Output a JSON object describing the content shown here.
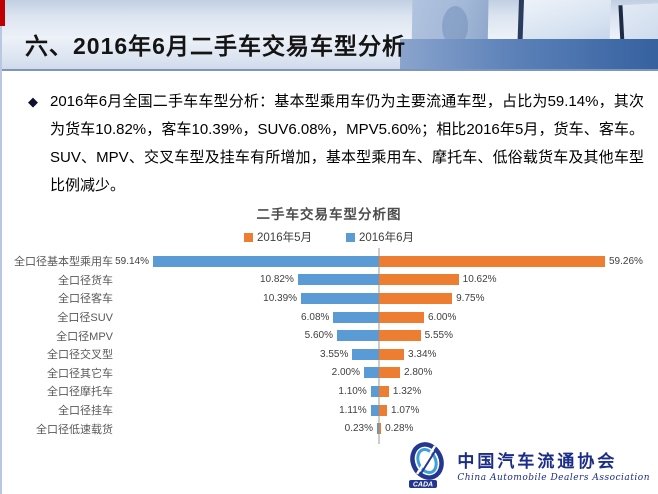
{
  "header": {
    "title": "六、2016年6月二手车交易车型分析"
  },
  "body": {
    "bullet": "◆",
    "paragraph": "2016年6月全国二手车车型分析：基本型乘用车仍为主要流通车型，占比为59.14%，其次为货车10.82%，客车10.39%，SUV6.08%，MPV5.60%；相比2016年5月，货车、客车。SUV、MPV、交叉车型及挂车有所增加，基本型乘用车、摩托车、低俗载货车及其他车型比例减少。"
  },
  "chart_data": {
    "type": "bar",
    "variant": "diverging-horizontal-tornado",
    "title": "二手车交易车型分析图",
    "legend_position": "top-center",
    "grid": false,
    "xlim_note": "bars clipped at about 30% per side; 59% bars truncated at plot edges",
    "categories": [
      "全口径基本型乘用车",
      "全口径货车",
      "全口径客车",
      "全口径SUV",
      "全口径MPV",
      "全口径交叉型",
      "全口径其它车",
      "全口径摩托车",
      "全口径挂车",
      "全口径低速载货"
    ],
    "series": [
      {
        "name": "2016年5月",
        "color": "#ED7D31",
        "side": "right",
        "values": [
          59.26,
          10.62,
          9.75,
          6.0,
          5.55,
          3.34,
          2.8,
          1.32,
          1.07,
          0.28
        ],
        "labels": [
          "59.26%",
          "10.62%",
          "9.75%",
          "6.00%",
          "5.55%",
          "3.34%",
          "2.80%",
          "1.32%",
          "1.07%",
          "0.28%"
        ]
      },
      {
        "name": "2016年6月",
        "color": "#5B9BD5",
        "side": "left",
        "values": [
          59.14,
          10.82,
          10.39,
          6.08,
          5.6,
          3.55,
          2.0,
          1.1,
          1.11,
          0.23
        ],
        "labels": [
          "59.14%",
          "10.82%",
          "10.39%",
          "6.08%",
          "5.60%",
          "3.55%",
          "2.00%",
          "1.10%",
          "1.11%",
          "0.23%"
        ]
      }
    ]
  },
  "logo": {
    "acronym": "CADA",
    "name_cn": "中国汽车流通协会",
    "name_en": "China Automobile Dealers Association"
  },
  "colors": {
    "accent_red": "#c00000",
    "bar_may": "#ED7D31",
    "bar_june": "#5B9BD5",
    "logo_navy": "#1b2d86"
  }
}
